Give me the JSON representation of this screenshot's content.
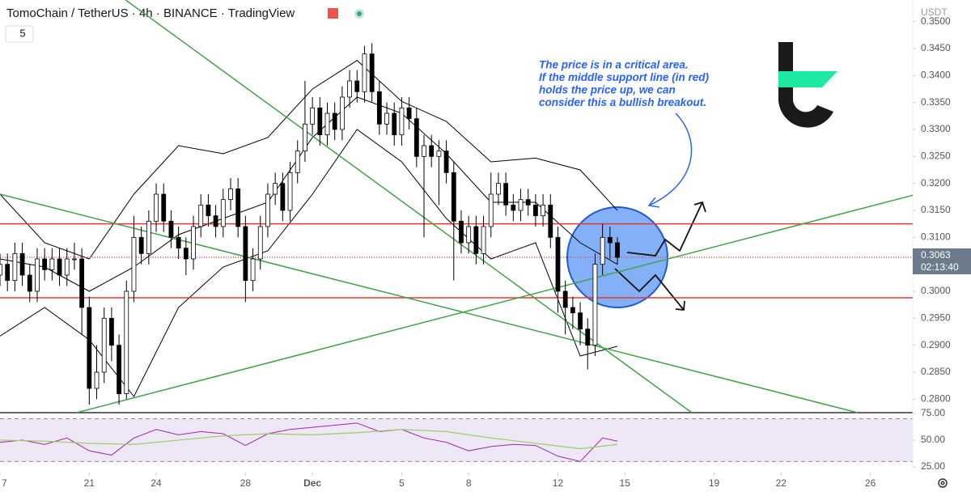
{
  "header": {
    "title": "TomoChain / TetherUS · 4h · BINANCE · TradingView",
    "interval_box": "5",
    "currency": "USDT"
  },
  "chart_data": {
    "type": "candlestick",
    "xlim": [
      0,
      122.7
    ],
    "xticks": [
      {
        "value": 0,
        "label": "7"
      },
      {
        "value": 12,
        "label": "21"
      },
      {
        "value": 21,
        "label": "24"
      },
      {
        "value": 33,
        "label": "28"
      },
      {
        "value": 42,
        "label": "Dec"
      },
      {
        "value": 54,
        "label": "5"
      },
      {
        "value": 63,
        "label": "8"
      },
      {
        "value": 75,
        "label": "12"
      },
      {
        "value": 84,
        "label": "15"
      },
      {
        "value": 96,
        "label": "19"
      },
      {
        "value": 105,
        "label": "22"
      },
      {
        "value": 117,
        "label": "26"
      }
    ],
    "ylim": [
      0.2775,
      0.354
    ],
    "yticks": [
      {
        "value": 0.28,
        "label": "0.2800"
      },
      {
        "value": 0.285,
        "label": "0.2850"
      },
      {
        "value": 0.29,
        "label": "0.2900"
      },
      {
        "value": 0.295,
        "label": "0.2950"
      },
      {
        "value": 0.3,
        "label": "0.3000"
      },
      {
        "value": 0.31,
        "label": "0.3100"
      },
      {
        "value": 0.315,
        "label": "0.3150"
      },
      {
        "value": 0.32,
        "label": "0.3200"
      },
      {
        "value": 0.325,
        "label": "0.3250"
      },
      {
        "value": 0.33,
        "label": "0.3300"
      },
      {
        "value": 0.335,
        "label": "0.3350"
      },
      {
        "value": 0.34,
        "label": "0.3400"
      },
      {
        "value": 0.345,
        "label": "0.3450"
      },
      {
        "value": 0.35,
        "label": "0.3500"
      }
    ],
    "open": [
      0.303,
      0.305,
      0.302,
      0.307,
      0.303,
      0.3,
      0.306,
      0.304,
      0.306,
      0.303,
      0.306,
      0.306,
      0.297,
      0.282,
      0.285,
      0.295,
      0.29,
      0.281,
      0.3,
      0.31,
      0.307,
      0.313,
      0.318,
      0.313,
      0.31,
      0.308,
      0.306,
      0.312,
      0.316,
      0.314,
      0.312,
      0.317,
      0.319,
      0.312,
      0.302,
      0.306,
      0.312,
      0.318,
      0.32,
      0.315,
      0.322,
      0.326,
      0.331,
      0.334,
      0.329,
      0.333,
      0.33,
      0.336,
      0.339,
      0.337,
      0.344,
      0.337,
      0.331,
      0.333,
      0.329,
      0.334,
      0.332,
      0.325,
      0.327,
      0.325,
      0.326,
      0.322,
      0.313,
      0.309,
      0.312,
      0.307,
      0.312,
      0.318,
      0.32,
      0.316,
      0.315,
      0.317,
      0.316,
      0.314,
      0.316,
      0.31,
      0.3,
      0.297,
      0.296,
      0.293,
      0.29,
      0.305,
      0.31,
      0.309
    ],
    "high": [
      0.307,
      0.307,
      0.309,
      0.309,
      0.305,
      0.308,
      0.308,
      0.308,
      0.308,
      0.308,
      0.309,
      0.308,
      0.299,
      0.29,
      0.297,
      0.297,
      0.292,
      0.302,
      0.314,
      0.312,
      0.315,
      0.32,
      0.32,
      0.315,
      0.312,
      0.31,
      0.314,
      0.318,
      0.318,
      0.316,
      0.319,
      0.321,
      0.321,
      0.314,
      0.308,
      0.314,
      0.32,
      0.322,
      0.322,
      0.324,
      0.328,
      0.339,
      0.336,
      0.336,
      0.335,
      0.335,
      0.338,
      0.341,
      0.341,
      0.3455,
      0.346,
      0.339,
      0.335,
      0.335,
      0.336,
      0.336,
      0.334,
      0.329,
      0.329,
      0.328,
      0.328,
      0.324,
      0.315,
      0.314,
      0.314,
      0.314,
      0.322,
      0.322,
      0.322,
      0.318,
      0.319,
      0.319,
      0.318,
      0.318,
      0.318,
      0.312,
      0.302,
      0.299,
      0.298,
      0.295,
      0.307,
      0.3125,
      0.312,
      0.31
    ],
    "low": [
      0.301,
      0.3,
      0.3,
      0.301,
      0.298,
      0.298,
      0.302,
      0.302,
      0.301,
      0.301,
      0.304,
      0.292,
      0.279,
      0.28,
      0.283,
      0.287,
      0.279,
      0.28,
      0.298,
      0.305,
      0.305,
      0.311,
      0.311,
      0.308,
      0.306,
      0.303,
      0.304,
      0.31,
      0.312,
      0.31,
      0.31,
      0.315,
      0.31,
      0.298,
      0.3,
      0.304,
      0.31,
      0.316,
      0.313,
      0.313,
      0.32,
      0.324,
      0.329,
      0.327,
      0.327,
      0.328,
      0.328,
      0.334,
      0.335,
      0.335,
      0.335,
      0.329,
      0.329,
      0.327,
      0.327,
      0.33,
      0.323,
      0.31,
      0.323,
      0.316,
      0.32,
      0.302,
      0.307,
      0.307,
      0.305,
      0.305,
      0.31,
      0.316,
      0.314,
      0.313,
      0.313,
      0.314,
      0.312,
      0.312,
      0.308,
      0.296,
      0.292,
      0.293,
      0.29,
      0.2855,
      0.288,
      0.303,
      0.306,
      0.305
    ],
    "close": [
      0.305,
      0.302,
      0.307,
      0.303,
      0.3,
      0.306,
      0.304,
      0.306,
      0.303,
      0.306,
      0.306,
      0.297,
      0.282,
      0.285,
      0.295,
      0.29,
      0.281,
      0.3,
      0.31,
      0.307,
      0.313,
      0.318,
      0.313,
      0.31,
      0.308,
      0.306,
      0.312,
      0.316,
      0.314,
      0.312,
      0.317,
      0.319,
      0.312,
      0.302,
      0.306,
      0.312,
      0.318,
      0.32,
      0.315,
      0.322,
      0.326,
      0.331,
      0.334,
      0.329,
      0.333,
      0.33,
      0.336,
      0.339,
      0.337,
      0.344,
      0.337,
      0.331,
      0.333,
      0.329,
      0.334,
      0.332,
      0.325,
      0.327,
      0.325,
      0.326,
      0.322,
      0.313,
      0.309,
      0.312,
      0.307,
      0.312,
      0.318,
      0.32,
      0.316,
      0.315,
      0.317,
      0.316,
      0.314,
      0.316,
      0.31,
      0.3,
      0.297,
      0.296,
      0.293,
      0.29,
      0.305,
      0.31,
      0.309,
      0.3063
    ],
    "up_color": "#ffffff",
    "down_color": "#000000",
    "bollinger": {
      "x": [
        0,
        6,
        12,
        18,
        24,
        30,
        36,
        42,
        48,
        54,
        60,
        66,
        72,
        78,
        83
      ],
      "upper": [
        0.318,
        0.309,
        0.306,
        0.318,
        0.327,
        0.3255,
        0.3285,
        0.3375,
        0.3428,
        0.3352,
        0.3315,
        0.324,
        0.3247,
        0.3225,
        0.315
      ],
      "middle": [
        0.306,
        0.3045,
        0.3,
        0.3045,
        0.3105,
        0.3135,
        0.3165,
        0.3285,
        0.336,
        0.333,
        0.3255,
        0.3165,
        0.3165,
        0.309,
        0.305
      ],
      "lower": [
        0.2917,
        0.297,
        0.291,
        0.2805,
        0.297,
        0.3045,
        0.3075,
        0.318,
        0.33,
        0.324,
        0.3135,
        0.306,
        0.309,
        0.288,
        0.2898
      ],
      "color": "#000000"
    },
    "levels": [
      0.3125,
      0.2988
    ],
    "level_color": "#e53935",
    "current_price": 0.3063,
    "countdown": "02:13:40",
    "trendlines": [
      {
        "x": [
          16.9,
          93
        ],
        "y": [
          0.354,
          0.2775
        ]
      },
      {
        "x": [
          10.3,
          122.7
        ],
        "y": [
          0.2775,
          0.3178
        ]
      },
      {
        "x": [
          0,
          115.3
        ],
        "y": [
          0.318,
          0.2775
        ]
      }
    ],
    "trendline_color": "#43a047",
    "annotation": [
      "The price is in a critical area.",
      "If the middle support line (in red)",
      "holds the price up, we can",
      "consider this a bullish breakout."
    ],
    "rsi": {
      "ylim": [
        21.2,
        74.2
      ],
      "yticks": [
        {
          "value": 25,
          "label": "25.00"
        },
        {
          "value": 50,
          "label": "50.00"
        },
        {
          "value": 75,
          "label": "75.00"
        }
      ],
      "bands": [
        70,
        30
      ],
      "x": [
        0,
        3,
        6,
        9,
        12,
        15,
        18,
        21,
        24,
        27,
        30,
        33,
        36,
        39,
        42,
        45,
        48,
        51,
        54,
        57,
        60,
        63,
        66,
        69,
        72,
        75,
        78,
        81,
        83
      ],
      "values": [
        48,
        50,
        46,
        52,
        40,
        36,
        52,
        60,
        55,
        58,
        56,
        45,
        56,
        60,
        62,
        64,
        66,
        58,
        60,
        52,
        48,
        40,
        44,
        46,
        45,
        35,
        30,
        52,
        49
      ],
      "color": "#9c27b0",
      "ma_x": [
        0,
        6,
        12,
        18,
        24,
        30,
        36,
        42,
        48,
        54,
        60,
        66,
        72,
        78,
        83
      ],
      "ma": [
        50,
        49,
        47,
        46,
        50,
        54,
        56,
        55,
        57,
        60,
        58,
        52,
        47,
        42,
        46
      ],
      "ma_color": "#9ccc65"
    }
  }
}
